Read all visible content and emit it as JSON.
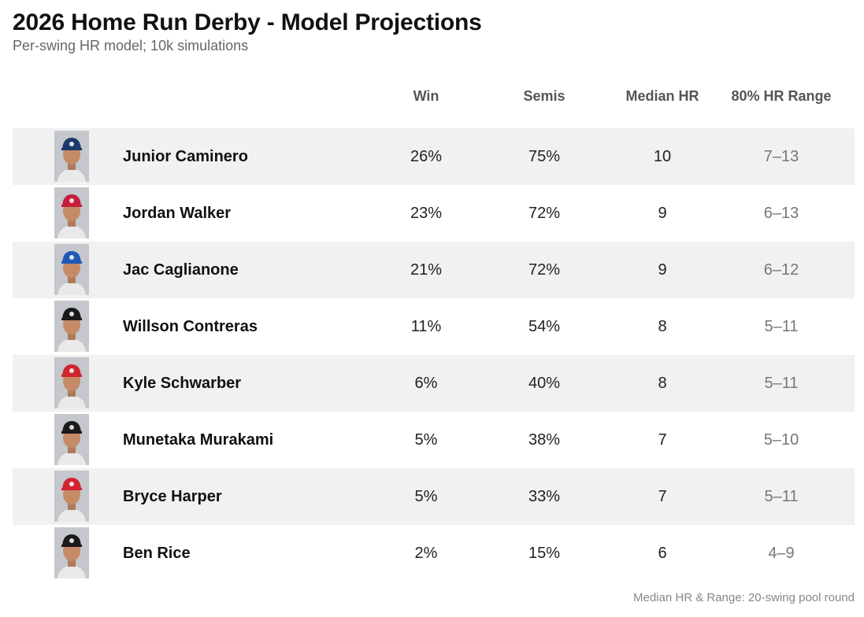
{
  "title": "2026 Home Run Derby - Model Projections",
  "subtitle": "Per-swing HR model; 10k simulations",
  "footnote": "Median HR & Range: 20-swing pool round",
  "colors": {
    "row_shade": "#f1f1f1",
    "range_text": "#777777",
    "header_text": "#555555"
  },
  "chart_data": {
    "type": "table",
    "columns": [
      "Win",
      "Semis",
      "Median HR",
      "80% HR Range"
    ],
    "rows": [
      {
        "player": "Junior Caminero",
        "win": "26%",
        "semis": "75%",
        "median_hr": "10",
        "range": "7–13",
        "cap_color": "#1b3a6b",
        "cap_logo": "TB"
      },
      {
        "player": "Jordan Walker",
        "win": "23%",
        "semis": "72%",
        "median_hr": "9",
        "range": "6–13",
        "cap_color": "#c41e3a",
        "cap_logo": "STL"
      },
      {
        "player": "Jac Caglianone",
        "win": "21%",
        "semis": "72%",
        "median_hr": "9",
        "range": "6–12",
        "cap_color": "#1d5ab5",
        "cap_logo": "KC"
      },
      {
        "player": "Willson Contreras",
        "win": "11%",
        "semis": "54%",
        "median_hr": "8",
        "range": "5–11",
        "cap_color": "#1a1a1a",
        "cap_logo": "B"
      },
      {
        "player": "Kyle Schwarber",
        "win": "6%",
        "semis": "40%",
        "median_hr": "8",
        "range": "5–11",
        "cap_color": "#d0242f",
        "cap_logo": "P"
      },
      {
        "player": "Munetaka Murakami",
        "win": "5%",
        "semis": "38%",
        "median_hr": "7",
        "range": "5–10",
        "cap_color": "#1a1a1a",
        "cap_logo": "SOX"
      },
      {
        "player": "Bryce Harper",
        "win": "5%",
        "semis": "33%",
        "median_hr": "7",
        "range": "5–11",
        "cap_color": "#d0242f",
        "cap_logo": "P"
      },
      {
        "player": "Ben Rice",
        "win": "2%",
        "semis": "15%",
        "median_hr": "6",
        "range": "4–9",
        "cap_color": "#1a1a1a",
        "cap_logo": "NY"
      }
    ]
  }
}
